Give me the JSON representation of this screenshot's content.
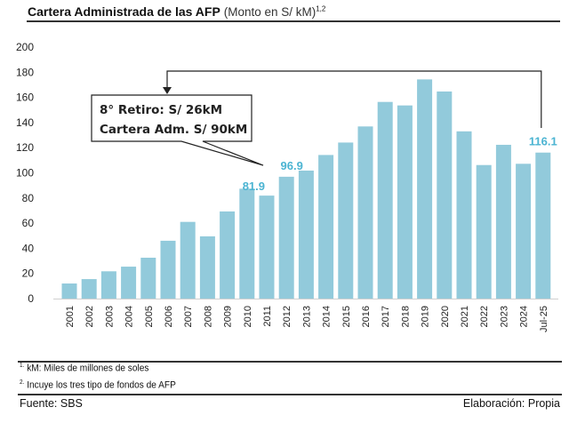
{
  "title": {
    "main": "Cartera Administrada de las AFP",
    "sub": "(Monto en S/ kM)",
    "sup": "1,2"
  },
  "colors": {
    "bar": "#92cadb",
    "data_label": "#4bb4d2",
    "axis": "#d0d0d0"
  },
  "chart_data": {
    "type": "bar",
    "title": "Cartera Administrada de las AFP (Monto en S/ kM)",
    "xlabel": "",
    "ylabel": "",
    "ylim": [
      0,
      200
    ],
    "yticks": [
      0,
      20,
      40,
      60,
      80,
      100,
      120,
      140,
      160,
      180,
      200
    ],
    "grid": false,
    "categories": [
      "2001",
      "2002",
      "2003",
      "2004",
      "2005",
      "2006",
      "2007",
      "2008",
      "2009",
      "2010",
      "2011",
      "2012",
      "2013",
      "2014",
      "2015",
      "2016",
      "2017",
      "2018",
      "2019",
      "2020",
      "2021",
      "2022",
      "2023",
      "2024",
      "Jul-25"
    ],
    "values": [
      12,
      15.5,
      21.7,
      25.4,
      32.5,
      46,
      61,
      49.5,
      69.3,
      87.4,
      81.9,
      96.9,
      101.8,
      114.2,
      124.1,
      136.9,
      156.4,
      153.6,
      174.3,
      164.7,
      133,
      106.2,
      122.3,
      107.2,
      116.1
    ],
    "data_labels": [
      {
        "category": "2011",
        "text": "81.9"
      },
      {
        "category": "2012",
        "text": "96.9"
      },
      {
        "category": "Jul-25",
        "text": "116.1"
      }
    ],
    "annotations": [
      {
        "lines": [
          "8° Retiro: S/ 26kM",
          "Cartera Adm. S/ 90kM"
        ],
        "points_to": "2011"
      },
      {
        "type": "arrow",
        "from": "Jul-25",
        "to": "8° Retiro box"
      }
    ]
  },
  "footnotes": [
    {
      "num": "1.",
      "text": "kM: Miles de millones de soles"
    },
    {
      "num": "2.",
      "text": "Incuye los tres tipo de fondos de AFP"
    }
  ],
  "source": "Fuente: SBS",
  "credit": "Elaboración: Propia"
}
